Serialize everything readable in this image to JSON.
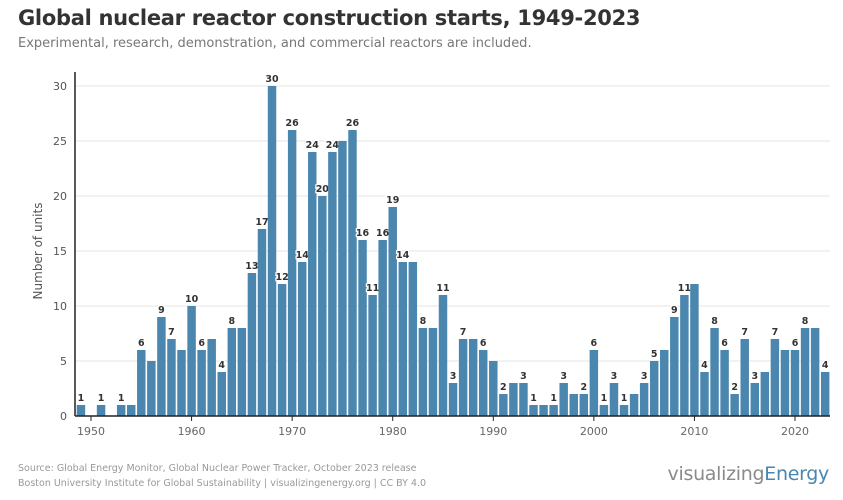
{
  "title": "Global nuclear reactor construction starts, 1949-2023",
  "subtitle": "Experimental, research, demonstration, and commercial reactors are included.",
  "footer": {
    "source_line1": "Source: Global Energy Monitor, Global Nuclear Power Tracker, October 2023 release",
    "source_line2": "Boston University Institute for Global Sustainability | visualizingenergy.org | CC BY 4.0",
    "logo_part1": "visualizing",
    "logo_part2": "Energy"
  },
  "chart_data": {
    "type": "bar",
    "title": "Global nuclear reactor construction starts, 1949-2023",
    "ylabel": "Number of units",
    "xlabel": "",
    "ylim": [
      0,
      30
    ],
    "yticks": [
      0,
      5,
      10,
      15,
      20,
      25,
      30
    ],
    "xticks": [
      1950,
      1960,
      1970,
      1980,
      1990,
      2000,
      2010,
      2020
    ],
    "grid": "horizontal",
    "bar_color": "#4a86ae",
    "x": [
      1949,
      1950,
      1951,
      1952,
      1953,
      1954,
      1955,
      1956,
      1957,
      1958,
      1959,
      1960,
      1961,
      1962,
      1963,
      1964,
      1965,
      1966,
      1967,
      1968,
      1969,
      1970,
      1971,
      1972,
      1973,
      1974,
      1975,
      1976,
      1977,
      1978,
      1979,
      1980,
      1981,
      1982,
      1983,
      1984,
      1985,
      1986,
      1987,
      1988,
      1989,
      1990,
      1991,
      1992,
      1993,
      1994,
      1995,
      1996,
      1997,
      1998,
      1999,
      2000,
      2001,
      2002,
      2003,
      2004,
      2005,
      2006,
      2007,
      2008,
      2009,
      2010,
      2011,
      2012,
      2013,
      2014,
      2015,
      2016,
      2017,
      2018,
      2019,
      2020,
      2021,
      2022,
      2023
    ],
    "values": [
      1,
      0,
      1,
      0,
      1,
      1,
      6,
      5,
      9,
      7,
      6,
      10,
      6,
      7,
      4,
      8,
      8,
      13,
      17,
      30,
      12,
      26,
      14,
      24,
      20,
      24,
      25,
      26,
      16,
      11,
      16,
      19,
      14,
      14,
      8,
      8,
      11,
      3,
      7,
      7,
      6,
      5,
      2,
      3,
      3,
      1,
      1,
      1,
      3,
      2,
      2,
      6,
      1,
      3,
      1,
      2,
      3,
      5,
      6,
      9,
      11,
      12,
      4,
      8,
      6,
      2,
      7,
      3,
      4,
      7,
      6,
      6,
      8,
      8,
      4
    ],
    "labeled_years": [
      1949,
      1951,
      1953,
      1955,
      1957,
      1958,
      1960,
      1961,
      1963,
      1964,
      1966,
      1967,
      1968,
      1969,
      1970,
      1971,
      1972,
      1973,
      1974,
      1976,
      1977,
      1978,
      1979,
      1980,
      1981,
      1983,
      1985,
      1986,
      1987,
      1989,
      1991,
      1993,
      1994,
      1996,
      1997,
      1999,
      2000,
      2001,
      2002,
      2003,
      2005,
      2006,
      2008,
      2009,
      2011,
      2012,
      2013,
      2014,
      2015,
      2016,
      2018,
      2020,
      2021,
      2023
    ]
  }
}
